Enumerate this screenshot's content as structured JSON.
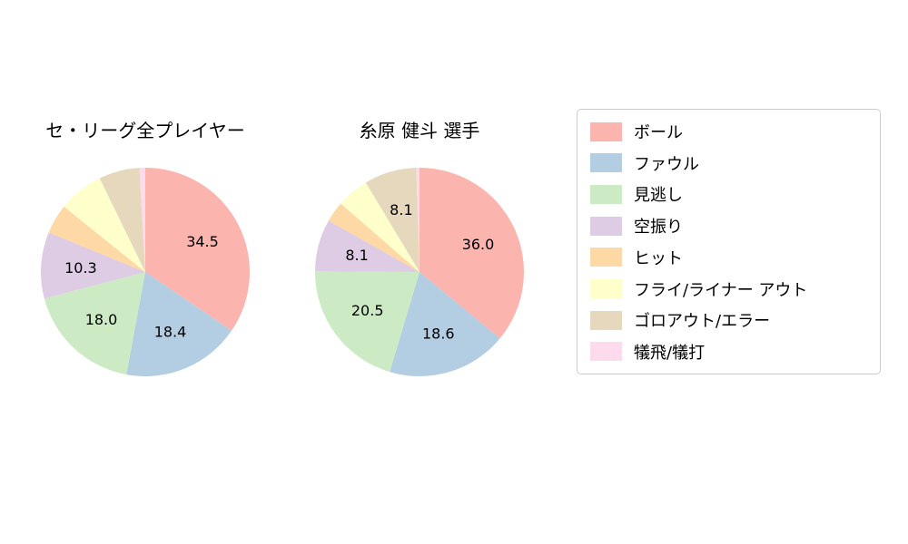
{
  "legend": {
    "items": [
      {
        "label": "ボール",
        "color": "#fbb4ae"
      },
      {
        "label": "ファウル",
        "color": "#b3cde3"
      },
      {
        "label": "見逃し",
        "color": "#ccebc5"
      },
      {
        "label": "空振り",
        "color": "#decbe4"
      },
      {
        "label": "ヒット",
        "color": "#fed9a6"
      },
      {
        "label": "フライ/ライナー アウト",
        "color": "#ffffcc"
      },
      {
        "label": "ゴロアウト/エラー",
        "color": "#e5d8bd"
      },
      {
        "label": "犠飛/犠打",
        "color": "#fddaec"
      }
    ]
  },
  "chart_data": [
    {
      "type": "pie",
      "title": "セ・リーグ全プレイヤー",
      "start_angle_deg": 90,
      "clockwise": true,
      "values_are": "percent",
      "slices": [
        {
          "label": "ボール",
          "value": 34.5,
          "display": "34.5",
          "color": "#fbb4ae"
        },
        {
          "label": "ファウル",
          "value": 18.4,
          "display": "18.4",
          "color": "#b3cde3"
        },
        {
          "label": "見逃し",
          "value": 18.0,
          "display": "18.0",
          "color": "#ccebc5"
        },
        {
          "label": "空振り",
          "value": 10.3,
          "display": "10.3",
          "color": "#decbe4"
        },
        {
          "label": "ヒット",
          "value": 4.6,
          "display": "",
          "color": "#fed9a6"
        },
        {
          "label": "フライ/ライナー アウト",
          "value": 7.0,
          "display": "",
          "color": "#ffffcc"
        },
        {
          "label": "ゴロアウト/エラー",
          "value": 6.3,
          "display": "",
          "color": "#e5d8bd"
        },
        {
          "label": "犠飛/犠打",
          "value": 0.9,
          "display": "",
          "color": "#fddaec"
        }
      ]
    },
    {
      "type": "pie",
      "title": "糸原 健斗  選手",
      "start_angle_deg": 90,
      "clockwise": true,
      "values_are": "percent",
      "slices": [
        {
          "label": "ボール",
          "value": 36.0,
          "display": "36.0",
          "color": "#fbb4ae"
        },
        {
          "label": "ファウル",
          "value": 18.6,
          "display": "18.6",
          "color": "#b3cde3"
        },
        {
          "label": "見逃し",
          "value": 20.5,
          "display": "20.5",
          "color": "#ccebc5"
        },
        {
          "label": "空振り",
          "value": 8.1,
          "display": "8.1",
          "color": "#decbe4"
        },
        {
          "label": "ヒット",
          "value": 3.2,
          "display": "",
          "color": "#fed9a6"
        },
        {
          "label": "フライ/ライナー アウト",
          "value": 5.0,
          "display": "",
          "color": "#ffffcc"
        },
        {
          "label": "ゴロアウト/エラー",
          "value": 8.1,
          "display": "8.1",
          "color": "#e5d8bd"
        },
        {
          "label": "犠飛/犠打",
          "value": 0.5,
          "display": "",
          "color": "#fddaec"
        }
      ]
    }
  ]
}
